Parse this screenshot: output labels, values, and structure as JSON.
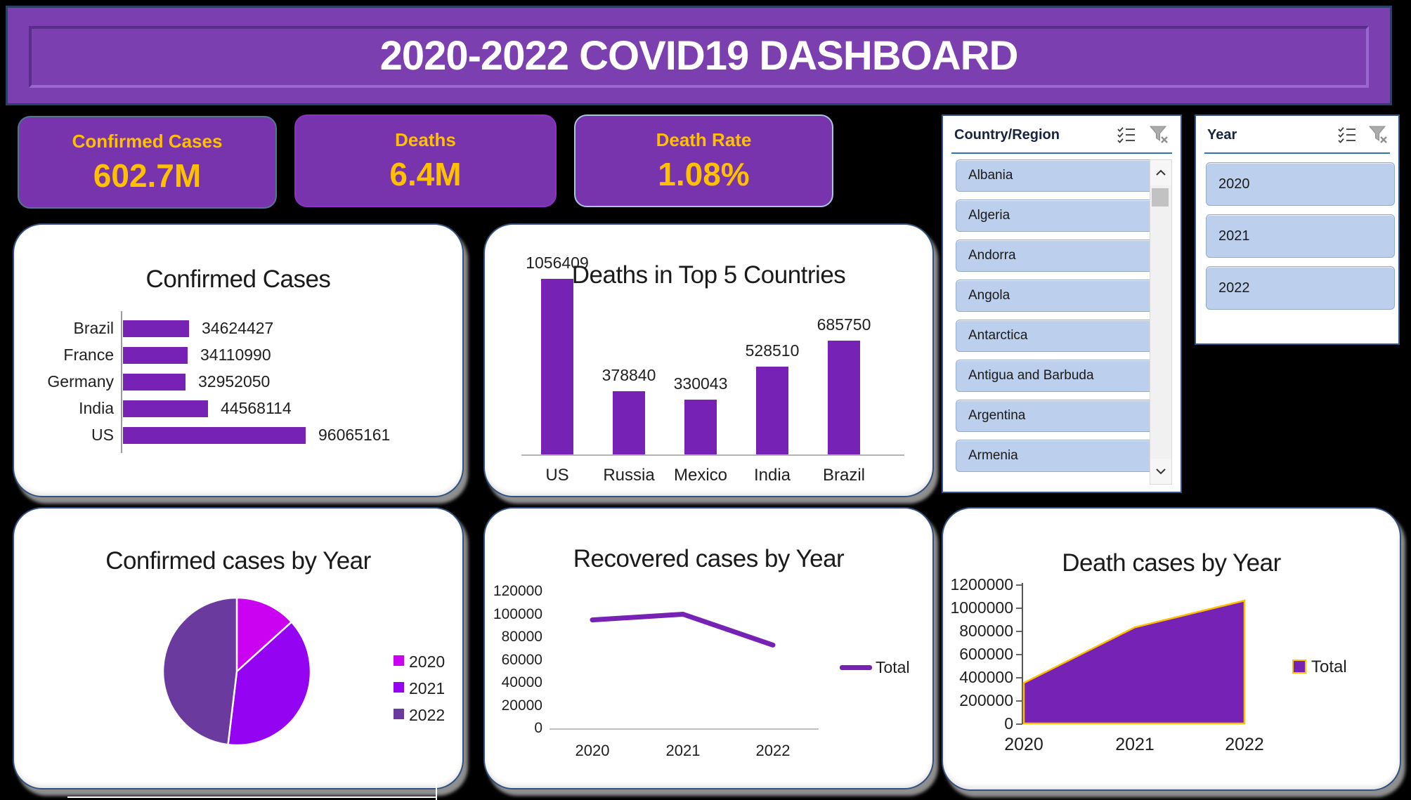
{
  "banner": {
    "title": "2020-2022 COVID19 DASHBOARD"
  },
  "kpis": [
    {
      "label": "Confirmed Cases",
      "value": "602.7M"
    },
    {
      "label": "Deaths",
      "value": "6.4M"
    },
    {
      "label": "Death Rate",
      "value": "1.08%"
    }
  ],
  "colors": {
    "background": "#000000",
    "banner_purple": "#7b3fb0",
    "card_purple": "#7834ac",
    "gold": "#ffc000",
    "chart_purple": "#7622b4",
    "pie_2020": "#cb02f2",
    "pie_2021": "#9403f2",
    "pie_2022": "#6b3a9e",
    "slicer_item_blue": "#bccfec"
  },
  "chart_data": [
    {
      "type": "bar",
      "orientation": "horizontal",
      "title": "Confirmed Cases",
      "categories": [
        "Brazil",
        "France",
        "Germany",
        "India",
        "US"
      ],
      "values": [
        34624427,
        34110990,
        32952050,
        44568114,
        96065161
      ],
      "data_labels": [
        "34624427",
        "34110990",
        "32952050",
        "44568114",
        "96065161"
      ],
      "xlim": [
        0,
        96065161
      ],
      "grid": false
    },
    {
      "type": "bar",
      "orientation": "vertical",
      "title": "Deaths in Top 5 Countries",
      "categories": [
        "US",
        "Russia",
        "Mexico",
        "India",
        "Brazil"
      ],
      "values": [
        1056409,
        378840,
        330043,
        528510,
        685750
      ],
      "data_labels": [
        "1056409",
        "378840",
        "330043",
        "528510",
        "685750"
      ],
      "ylim": [
        0,
        1056409
      ],
      "grid": false
    },
    {
      "type": "pie",
      "title": "Confirmed cases by Year",
      "categories": [
        "2020",
        "2021",
        "2022"
      ],
      "values_pct": [
        13.3,
        38.6,
        48.1
      ],
      "slice_colors": [
        "#cb02f2",
        "#9403f2",
        "#6b3a9e"
      ],
      "legend_position": "right",
      "start_angle_deg": 0,
      "direction": "clockwise"
    },
    {
      "type": "line",
      "title": "Recovered cases by Year",
      "x": [
        "2020",
        "2021",
        "2022"
      ],
      "series": [
        {
          "name": "Total",
          "values": [
            95000,
            100000,
            73000
          ]
        }
      ],
      "ylim": [
        0,
        120000
      ],
      "ytick_step": 20000,
      "yticks": [
        "0",
        "20000",
        "40000",
        "60000",
        "80000",
        "100000",
        "120000"
      ],
      "legend_position": "right",
      "grid": false
    },
    {
      "type": "area",
      "title": "Death cases by Year",
      "x": [
        "2020",
        "2021",
        "2022"
      ],
      "series": [
        {
          "name": "Total",
          "values": [
            350000,
            830000,
            1060000
          ]
        }
      ],
      "ylim": [
        0,
        1200000
      ],
      "ytick_step": 200000,
      "yticks": [
        "0",
        "200000",
        "400000",
        "600000",
        "800000",
        "1000000",
        "1200000"
      ],
      "edge_color": "#ffc000",
      "legend_position": "right",
      "grid": false
    }
  ],
  "slicers": [
    {
      "title": "Country/Region",
      "items": [
        "Albania",
        "Algeria",
        "Andorra",
        "Angola",
        "Antarctica",
        "Antigua and Barbuda",
        "Argentina",
        "Armenia"
      ],
      "icons": [
        "multi-select-icon",
        "clear-filter-icon"
      ],
      "has_scrollbar": true
    },
    {
      "title": "Year",
      "items": [
        "2020",
        "2021",
        "2022"
      ],
      "icons": [
        "multi-select-icon",
        "clear-filter-icon"
      ],
      "has_scrollbar": false
    }
  ]
}
